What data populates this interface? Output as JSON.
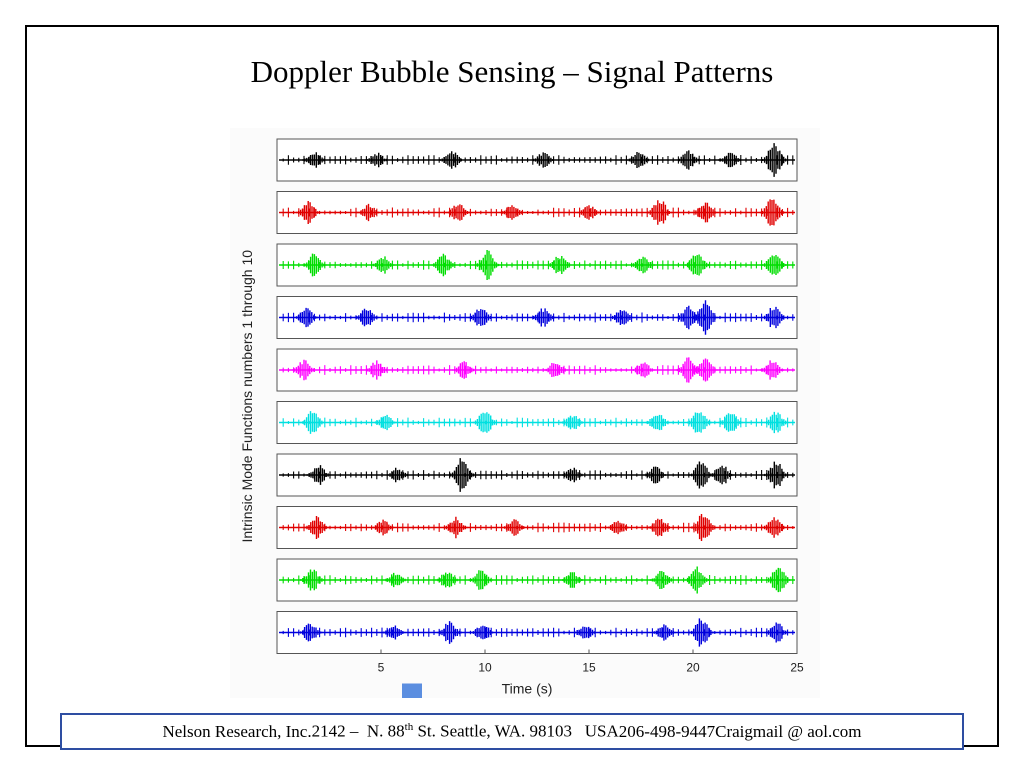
{
  "slide": {
    "title": "Doppler Bubble Sensing – Signal Patterns"
  },
  "footer": {
    "company": "Nelson Research, Inc.",
    "address_number": "2142 –  N. 88",
    "address_sup": "th",
    "address_rest": " St. Seattle, WA. 98103   USA",
    "phone": "206-498-9447",
    "email": "Craigmail @ aol.com"
  },
  "colors": {
    "footer_border": "#2e4ea2",
    "marker_square": "#5b8ee0"
  },
  "chart_data": {
    "type": "line",
    "ylabel": "Intrinsic Mode Functions numbers 1 through 10",
    "xlabel": "Time (s)",
    "xlim": [
      0,
      25
    ],
    "xticks": [
      5,
      10,
      15,
      20,
      25
    ],
    "grid": false,
    "series": [
      {
        "color": "#000000",
        "bursts": [
          [
            1.8,
            0.5
          ],
          [
            4.8,
            0.4
          ],
          [
            8.4,
            0.55
          ],
          [
            12.8,
            0.4
          ],
          [
            17.4,
            0.45
          ],
          [
            19.8,
            0.5
          ],
          [
            21.8,
            0.45
          ],
          [
            23.9,
            1.0
          ]
        ]
      },
      {
        "color": "#e00000",
        "bursts": [
          [
            1.5,
            0.6
          ],
          [
            4.4,
            0.45
          ],
          [
            8.7,
            0.5
          ],
          [
            11.3,
            0.45
          ],
          [
            15.0,
            0.4
          ],
          [
            18.4,
            0.75
          ],
          [
            20.6,
            0.65
          ],
          [
            23.8,
            0.8
          ]
        ]
      },
      {
        "color": "#00dd00",
        "bursts": [
          [
            1.8,
            0.65
          ],
          [
            5.1,
            0.5
          ],
          [
            8.0,
            0.6
          ],
          [
            10.1,
            0.8
          ],
          [
            13.6,
            0.55
          ],
          [
            17.6,
            0.5
          ],
          [
            20.2,
            0.75
          ],
          [
            23.9,
            0.75
          ]
        ]
      },
      {
        "color": "#0000dd",
        "bursts": [
          [
            1.4,
            0.55
          ],
          [
            4.3,
            0.5
          ],
          [
            9.8,
            0.55
          ],
          [
            12.8,
            0.5
          ],
          [
            16.6,
            0.55
          ],
          [
            19.8,
            0.7
          ],
          [
            20.6,
            1.0
          ],
          [
            23.9,
            0.65
          ]
        ]
      },
      {
        "color": "#ff00ff",
        "bursts": [
          [
            1.3,
            0.55
          ],
          [
            4.8,
            0.5
          ],
          [
            9.0,
            0.45
          ],
          [
            13.4,
            0.5
          ],
          [
            17.6,
            0.45
          ],
          [
            19.8,
            0.75
          ],
          [
            20.6,
            0.65
          ],
          [
            23.8,
            0.55
          ]
        ]
      },
      {
        "color": "#00e0e0",
        "bursts": [
          [
            1.7,
            0.65
          ],
          [
            5.2,
            0.45
          ],
          [
            10.0,
            0.75
          ],
          [
            14.2,
            0.45
          ],
          [
            18.3,
            0.55
          ],
          [
            20.3,
            0.7
          ],
          [
            21.8,
            0.6
          ],
          [
            24.0,
            0.6
          ]
        ]
      },
      {
        "color": "#000000",
        "bursts": [
          [
            2.0,
            0.55
          ],
          [
            5.8,
            0.4
          ],
          [
            8.9,
            1.0
          ],
          [
            14.2,
            0.4
          ],
          [
            18.2,
            0.45
          ],
          [
            20.4,
            0.75
          ],
          [
            21.4,
            0.55
          ],
          [
            24.0,
            0.8
          ]
        ]
      },
      {
        "color": "#e00000",
        "bursts": [
          [
            1.9,
            0.6
          ],
          [
            5.1,
            0.4
          ],
          [
            8.6,
            0.55
          ],
          [
            11.4,
            0.45
          ],
          [
            16.4,
            0.4
          ],
          [
            18.4,
            0.5
          ],
          [
            20.5,
            0.8
          ],
          [
            23.9,
            0.6
          ]
        ]
      },
      {
        "color": "#00dd00",
        "bursts": [
          [
            1.7,
            0.6
          ],
          [
            5.7,
            0.4
          ],
          [
            8.2,
            0.5
          ],
          [
            9.8,
            0.55
          ],
          [
            14.2,
            0.45
          ],
          [
            18.5,
            0.5
          ],
          [
            20.2,
            0.75
          ],
          [
            24.1,
            0.8
          ]
        ]
      },
      {
        "color": "#0000dd",
        "bursts": [
          [
            1.6,
            0.55
          ],
          [
            5.6,
            0.4
          ],
          [
            8.3,
            0.6
          ],
          [
            9.9,
            0.5
          ],
          [
            14.8,
            0.45
          ],
          [
            18.6,
            0.5
          ],
          [
            20.4,
            0.8
          ],
          [
            24.0,
            0.6
          ]
        ]
      }
    ]
  }
}
